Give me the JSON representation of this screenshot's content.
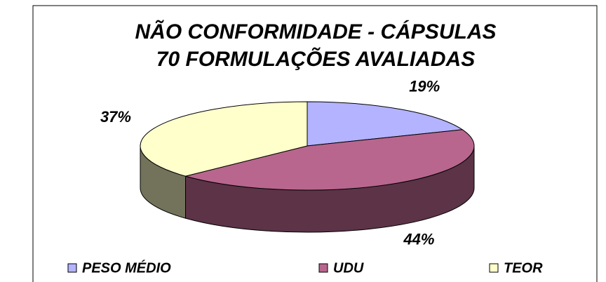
{
  "chart_data": {
    "type": "pie",
    "title": "NÃO CONFORMIDADE - CÁPSULAS",
    "subtitle": "70 FORMULAÇÕES AVALIADAS",
    "categories": [
      "PESO MÉDIO",
      "UDU",
      "TEOR"
    ],
    "values": [
      19,
      44,
      37
    ],
    "value_labels": [
      "19%",
      "44%",
      "37%"
    ],
    "colors": [
      "#b3b3ff",
      "#b8668e",
      "#ffffcc"
    ],
    "legend": "bottom"
  }
}
